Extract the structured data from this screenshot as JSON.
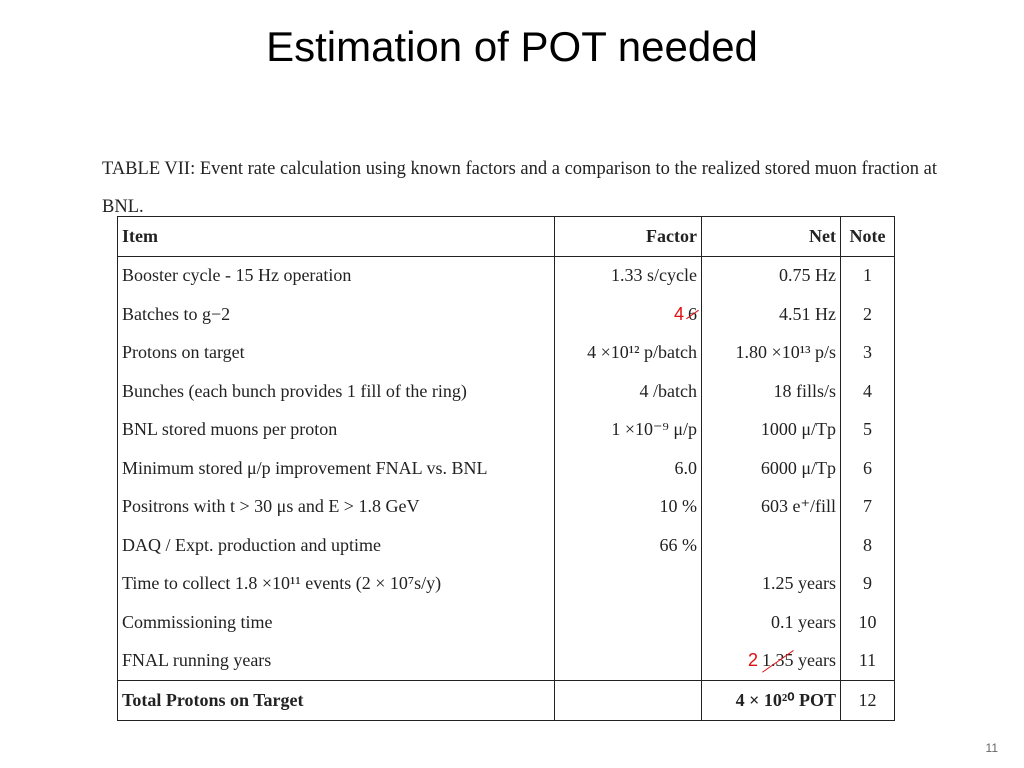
{
  "slide": {
    "title": "Estimation of POT needed",
    "page_number": "11"
  },
  "caption": "TABLE VII: Event rate calculation using known factors and a comparison to the realized stored muon fraction at BNL.",
  "table": {
    "headers": [
      "Item",
      "Factor",
      "Net",
      "Note"
    ],
    "rows": [
      {
        "item": "Booster cycle - 15 Hz operation",
        "factor": "1.33 s/cycle",
        "net": "0.75 Hz",
        "note": "1"
      },
      {
        "item": "Batches to g−2",
        "factor_correction": "4",
        "factor_struck": "6",
        "net": "4.51 Hz",
        "note": "2"
      },
      {
        "item": "Protons on target",
        "factor": "4 ×10¹² p/batch",
        "net": "1.80 ×10¹³ p/s",
        "note": "3"
      },
      {
        "item": "Bunches (each bunch provides 1 fill of the ring)",
        "factor": "4 /batch",
        "net": "18 fills/s",
        "note": "4"
      },
      {
        "item": "BNL stored muons per proton",
        "factor": "1 ×10⁻⁹ μ/p",
        "net": "1000 μ/Tp",
        "note": "5"
      },
      {
        "item": "Minimum stored μ/p improvement FNAL vs. BNL",
        "factor": "6.0",
        "net": "6000 μ/Tp",
        "note": "6"
      },
      {
        "item": "Positrons with t > 30 μs and E > 1.8 GeV",
        "factor": "10 %",
        "net": "603 e⁺/fill",
        "note": "7"
      },
      {
        "item": "DAQ / Expt. production and uptime",
        "factor": "66 %",
        "net": "",
        "note": "8"
      },
      {
        "item": "Time to collect 1.8 ×10¹¹ events (2 × 10⁷s/y)",
        "factor": "",
        "net": "1.25 years",
        "note": "9"
      },
      {
        "item": "Commissioning time",
        "factor": "",
        "net": "0.1 years",
        "note": "10"
      },
      {
        "item": "FNAL running years",
        "factor": "",
        "net_correction": "2",
        "net_struck": "1.35",
        "net_suffix": " years",
        "note": "11"
      }
    ],
    "total": {
      "item": "Total Protons on Target",
      "factor": "",
      "net": "4 × 10²⁰ POT",
      "note": "12"
    }
  },
  "colors": {
    "annotation": "#e01010",
    "text": "#222222"
  }
}
